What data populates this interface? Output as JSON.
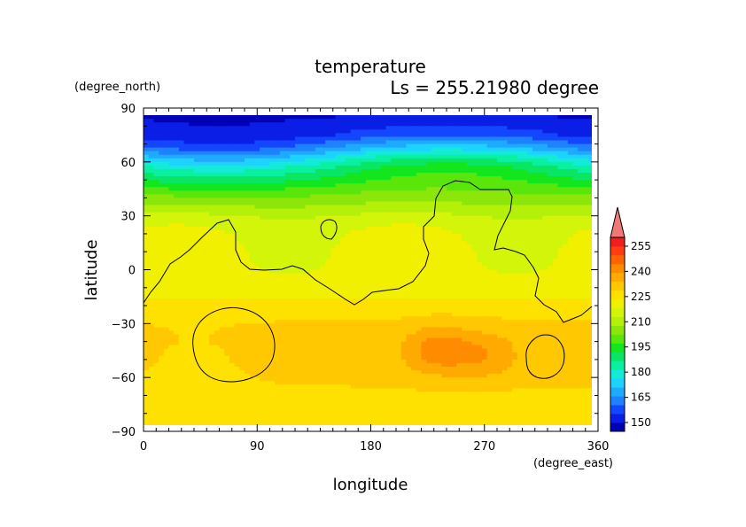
{
  "chart_data": {
    "type": "heatmap",
    "title": "temperature",
    "subtitle": "Ls = 255.21980 degree",
    "xlabel": "longitude",
    "ylabel": "latitude",
    "x_units": "(degree_east)",
    "y_units": "(degree_north)",
    "xlim": [
      0,
      360
    ],
    "ylim": [
      -90,
      90
    ],
    "xticks": [
      "0",
      "90",
      "180",
      "270",
      "360"
    ],
    "yticks": [
      "90",
      "60",
      "30",
      "0",
      "−30",
      "−60",
      "−90"
    ],
    "colorbar": {
      "levels": [
        150,
        155,
        160,
        165,
        170,
        175,
        180,
        185,
        190,
        195,
        200,
        205,
        210,
        215,
        220,
        225,
        230,
        235,
        240,
        245,
        250,
        255
      ],
      "tick_labels": [
        "255",
        "240",
        "225",
        "210",
        "195",
        "180",
        "165",
        "150"
      ],
      "colors": [
        "#0000b4",
        "#0a1ee6",
        "#1446ff",
        "#1e82ff",
        "#1eaaff",
        "#1ed2ff",
        "#14ebd7",
        "#0af0a0",
        "#0ae664",
        "#14e61e",
        "#5ae60a",
        "#8ce60a",
        "#b4f00a",
        "#d2f50a",
        "#f0f000",
        "#ffe100",
        "#ffc800",
        "#ffaa00",
        "#ff8c00",
        "#ff6400",
        "#ff3c14",
        "#f01e1e",
        "#f07878"
      ]
    },
    "lat_profile": [
      [
        85,
        150
      ],
      [
        75,
        155
      ],
      [
        68,
        165
      ],
      [
        63,
        175
      ],
      [
        57,
        185
      ],
      [
        50,
        192
      ],
      [
        42,
        200
      ],
      [
        35,
        206
      ],
      [
        28,
        212
      ],
      [
        20,
        215
      ],
      [
        10,
        216
      ],
      [
        0,
        216
      ],
      [
        -10,
        217
      ],
      [
        -18,
        221
      ],
      [
        -25,
        224
      ],
      [
        -32,
        226
      ],
      [
        -40,
        227
      ],
      [
        -50,
        227
      ],
      [
        -60,
        226
      ],
      [
        -70,
        224
      ],
      [
        -80,
        223
      ],
      [
        -85,
        223
      ]
    ],
    "warm_regions": [
      {
        "lon": 233,
        "lat": -45,
        "value": 233
      },
      {
        "lon": 270,
        "lat": -48,
        "value": 231
      }
    ],
    "topography_contour": "0 m"
  }
}
